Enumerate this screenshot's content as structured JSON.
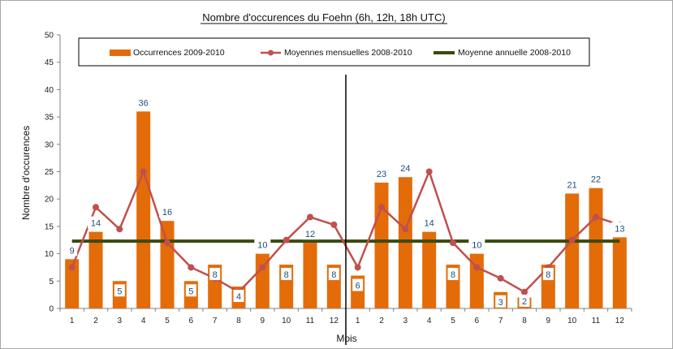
{
  "chart_data": {
    "type": "bar",
    "title": "Nombre d'occurences du Foehn (6h, 12h, 18h UTC)",
    "xlabel": "Mois",
    "ylabel": "Nombre d'occurences",
    "ylim": [
      0,
      50
    ],
    "yticks": [
      0,
      5,
      10,
      15,
      20,
      25,
      30,
      35,
      40,
      45,
      50
    ],
    "categories": [
      "1",
      "2",
      "3",
      "4",
      "5",
      "6",
      "7",
      "8",
      "9",
      "10",
      "11",
      "12",
      "1",
      "2",
      "3",
      "4",
      "5",
      "6",
      "7",
      "8",
      "9",
      "10",
      "11",
      "12"
    ],
    "series": [
      {
        "name": "Occurrences 2009-2010",
        "kind": "bar",
        "color": "#e36c09",
        "values": [
          9,
          14,
          5,
          36,
          16,
          5,
          8,
          4,
          10,
          8,
          12,
          8,
          6,
          23,
          24,
          14,
          8,
          10,
          3,
          2,
          8,
          21,
          22,
          13
        ],
        "labels": [
          "9",
          "14",
          "5",
          "36",
          "16",
          "5",
          "8",
          "4",
          "10",
          "8",
          "12",
          "8",
          "6",
          "23",
          "24",
          "14",
          "8",
          "10",
          "3",
          "2",
          "8",
          "21",
          "22",
          "13"
        ]
      },
      {
        "name": "Moyennes mensuelles 2008-2010",
        "kind": "line",
        "color": "#c0504d",
        "values": [
          7.5,
          18.5,
          14.5,
          25,
          12,
          7.5,
          5.5,
          3,
          7.5,
          12.5,
          16.7,
          15.3,
          7.5,
          18.5,
          14.5,
          25,
          12,
          7.5,
          5.5,
          3,
          7.5,
          12.5,
          16.7,
          15.3
        ]
      },
      {
        "name": "Moyenne annuelle 2008-2010",
        "kind": "hline",
        "color": "#3a4a10",
        "value": 12.3
      }
    ],
    "grid": false,
    "legend_position": "top"
  }
}
